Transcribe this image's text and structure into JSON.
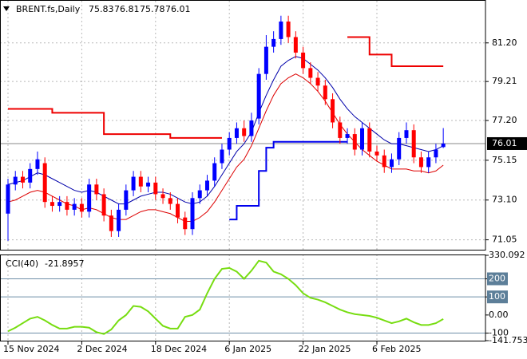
{
  "chart_data": [
    {
      "type": "candlestick",
      "title": "BRENT.fs,Daily",
      "categories": [
        "15 Nov 2024",
        null,
        null,
        null,
        null,
        null,
        null,
        null,
        null,
        null,
        "2 Dec 2024",
        null,
        null,
        null,
        null,
        null,
        null,
        null,
        null,
        null,
        "18 Dec 2024",
        null,
        null,
        null,
        null,
        null,
        null,
        null,
        null,
        null,
        "6 Jan 2025",
        null,
        null,
        null,
        null,
        null,
        null,
        null,
        null,
        null,
        "22 Jan 2025",
        null,
        null,
        null,
        null,
        null,
        null,
        null,
        null,
        null,
        "6 Feb 2025",
        null,
        null,
        null,
        null,
        null,
        null,
        null,
        null,
        null
      ],
      "open": [
        72.4,
        73.9,
        74.3,
        74.0,
        74.7,
        75.0,
        73.0,
        72.8,
        73.0,
        72.6,
        72.9,
        72.5,
        73.9,
        73.4,
        72.3,
        71.5,
        72.6,
        73.6,
        74.3,
        73.8,
        74.0,
        73.4,
        73.2,
        72.9,
        72.2,
        71.6,
        73.2,
        73.6,
        74.1,
        75.0,
        75.7,
        76.3,
        76.8,
        76.4,
        77.3,
        79.6,
        81.0,
        81.4,
        82.3,
        81.5,
        80.7,
        79.9,
        79.4,
        79.0,
        78.3,
        77.1,
        76.3,
        76.5,
        75.7,
        76.8,
        75.6,
        75.4,
        74.8,
        75.2,
        76.3,
        76.7,
        75.3,
        74.8,
        75.3,
        75.83
      ],
      "high": [
        74.2,
        74.6,
        74.6,
        75.0,
        75.6,
        75.3,
        73.3,
        73.3,
        73.3,
        73.2,
        73.2,
        74.2,
        74.2,
        73.7,
        72.6,
        72.9,
        73.9,
        74.6,
        74.6,
        74.3,
        74.3,
        73.7,
        73.5,
        73.2,
        72.5,
        73.5,
        73.9,
        74.4,
        75.3,
        76.0,
        76.6,
        77.1,
        77.2,
        77.6,
        79.9,
        81.6,
        81.8,
        82.6,
        82.6,
        81.8,
        81.0,
        80.2,
        79.7,
        79.3,
        78.6,
        77.4,
        76.8,
        76.8,
        77.1,
        77.1,
        75.9,
        75.7,
        75.5,
        76.6,
        77.1,
        77.0,
        75.6,
        75.6,
        76.0,
        76.81
      ],
      "low": [
        71.0,
        73.6,
        73.7,
        73.7,
        74.4,
        72.7,
        72.5,
        72.5,
        72.3,
        72.3,
        72.2,
        72.2,
        73.1,
        72.0,
        71.2,
        71.2,
        72.3,
        73.3,
        73.5,
        73.5,
        73.1,
        72.9,
        72.6,
        71.9,
        71.3,
        71.3,
        72.9,
        73.3,
        73.8,
        74.7,
        75.4,
        76.0,
        76.1,
        76.1,
        77.0,
        79.3,
        80.7,
        81.1,
        81.2,
        80.4,
        79.6,
        79.1,
        78.7,
        78.0,
        76.8,
        76.0,
        76.0,
        75.4,
        75.4,
        75.3,
        75.1,
        74.5,
        74.5,
        74.9,
        76.0,
        75.0,
        74.5,
        74.5,
        75.0,
        75.78
      ],
      "close": [
        73.9,
        74.3,
        74.0,
        74.7,
        75.2,
        73.0,
        72.8,
        73.0,
        72.6,
        72.9,
        72.5,
        73.9,
        73.4,
        72.3,
        71.5,
        72.6,
        73.6,
        74.3,
        73.8,
        74.0,
        73.4,
        73.2,
        72.9,
        72.2,
        71.6,
        73.2,
        73.6,
        74.1,
        75.0,
        75.7,
        76.3,
        76.8,
        76.4,
        77.2,
        79.6,
        81.0,
        81.4,
        82.3,
        81.5,
        80.7,
        79.9,
        79.4,
        79.0,
        78.3,
        77.1,
        76.3,
        76.5,
        75.7,
        76.8,
        75.6,
        75.4,
        74.8,
        75.2,
        76.3,
        76.7,
        75.3,
        74.8,
        75.3,
        75.7,
        76.01
      ],
      "up_color": "#0000ff",
      "down_color": "#ff0000",
      "series": [
        {
          "color": "#0000aa",
          "values": [
            73.9,
            74.0,
            74.1,
            74.3,
            74.5,
            74.4,
            74.2,
            74.0,
            73.8,
            73.6,
            73.5,
            73.6,
            73.5,
            73.3,
            73.1,
            72.9,
            72.9,
            73.1,
            73.3,
            73.4,
            73.5,
            73.5,
            73.4,
            73.2,
            73.0,
            72.9,
            73.0,
            73.3,
            73.8,
            74.4,
            75.0,
            75.6,
            76.0,
            76.6,
            77.6,
            78.5,
            79.3,
            80.0,
            80.3,
            80.5,
            80.4,
            80.1,
            79.8,
            79.4,
            78.9,
            78.3,
            77.8,
            77.4,
            77.1,
            76.8,
            76.5,
            76.2,
            76.0,
            76.0,
            75.9,
            75.8,
            75.7,
            75.6,
            75.7,
            75.9
          ]
        },
        {
          "color": "#dd0000",
          "values": [
            73.0,
            73.1,
            73.3,
            73.5,
            73.6,
            73.5,
            73.3,
            73.1,
            72.9,
            72.8,
            72.6,
            72.7,
            72.6,
            72.4,
            72.2,
            72.1,
            72.1,
            72.3,
            72.5,
            72.6,
            72.6,
            72.5,
            72.4,
            72.2,
            72.0,
            72.0,
            72.2,
            72.5,
            73.0,
            73.6,
            74.2,
            74.8,
            75.2,
            75.9,
            76.8,
            77.7,
            78.5,
            79.1,
            79.4,
            79.6,
            79.4,
            79.1,
            78.7,
            78.2,
            77.6,
            77.0,
            76.5,
            76.1,
            75.7,
            75.4,
            75.1,
            74.9,
            74.7,
            74.7,
            74.7,
            74.6,
            74.6,
            74.5,
            74.6,
            74.9
          ]
        },
        {
          "color": "#ee0000",
          "step": true,
          "width": 2,
          "values": [
            77.8,
            77.8,
            77.8,
            77.8,
            77.8,
            77.8,
            77.6,
            77.6,
            77.6,
            77.6,
            77.6,
            77.6,
            77.6,
            76.5,
            76.5,
            76.5,
            76.5,
            76.5,
            76.5,
            76.5,
            76.5,
            76.5,
            76.3,
            76.3,
            76.3,
            76.3,
            76.3,
            76.3,
            76.3,
            76.3,
            null,
            null,
            null,
            null,
            null,
            null,
            null,
            null,
            null,
            null,
            null,
            null,
            null,
            null,
            null,
            null,
            81.5,
            81.5,
            81.5,
            80.6,
            80.6,
            80.6,
            80.0,
            80.0,
            80.0,
            80.0,
            80.0,
            80.0,
            80.0,
            80.0
          ]
        },
        {
          "color": "#0000ee",
          "step": true,
          "width": 2,
          "values": [
            null,
            null,
            null,
            null,
            null,
            null,
            null,
            null,
            null,
            null,
            null,
            null,
            null,
            null,
            null,
            null,
            null,
            null,
            null,
            null,
            null,
            null,
            null,
            null,
            null,
            null,
            null,
            null,
            null,
            null,
            72.1,
            72.8,
            72.8,
            72.8,
            74.6,
            75.8,
            76.1,
            76.1,
            76.1,
            76.1,
            76.1,
            76.1,
            76.1,
            76.1,
            76.1,
            76.1,
            76.1,
            null,
            null,
            null,
            null,
            null,
            null,
            null,
            null,
            null,
            null,
            null,
            null,
            null
          ]
        }
      ],
      "ylim": [
        70.54,
        83.37
      ],
      "yticks": [
        {
          "value": 81.2,
          "label": "81.20"
        },
        {
          "value": 79.21,
          "label": "79.21"
        },
        {
          "value": 77.2,
          "label": "77.20"
        },
        {
          "value": 75.15,
          "label": "75.15"
        },
        {
          "value": 73.1,
          "label": "73.10"
        },
        {
          "value": 71.05,
          "label": "71.05"
        }
      ],
      "grid": true
    },
    {
      "type": "line",
      "title": "CCI(40)",
      "color": "#77dd11",
      "values": [
        -90,
        -70,
        -45,
        -20,
        -10,
        -30,
        -55,
        -75,
        -75,
        -65,
        -65,
        -70,
        -95,
        -105,
        -80,
        -30,
        0,
        50,
        45,
        20,
        -20,
        -60,
        -75,
        -75,
        -10,
        0,
        30,
        120,
        200,
        255,
        260,
        240,
        200,
        245,
        300,
        290,
        240,
        225,
        200,
        165,
        120,
        95,
        85,
        70,
        50,
        30,
        15,
        5,
        0,
        -5,
        -15,
        -30,
        -45,
        -35,
        -20,
        -40,
        -55,
        -55,
        -45,
        -21.8957
      ],
      "ylim": [
        -141.753,
        330.092
      ],
      "yticks": [
        330.092,
        {
          "value": 200,
          "label": "200",
          "highlight": true
        },
        {
          "value": 100,
          "label": "100",
          "highlight": true
        },
        {
          "value": 0,
          "label": "0.00"
        },
        -100,
        -141.753
      ],
      "levels": [
        200,
        100,
        -100
      ]
    }
  ]
}
